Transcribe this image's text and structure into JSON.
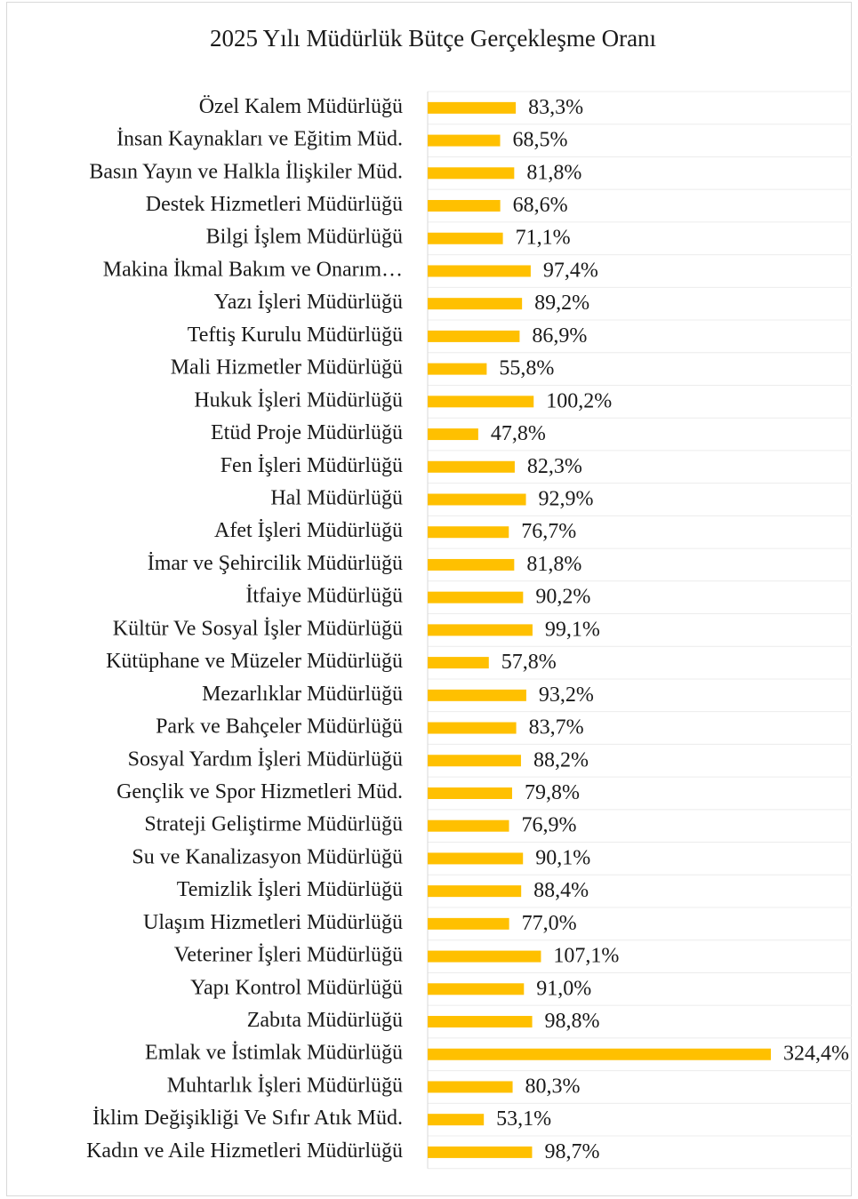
{
  "chart_data": {
    "type": "barh",
    "title": "2025 Yılı Müdürlük  Bütçe Gerçekleşme Oranı",
    "categories": [
      "Özel Kalem Müdürlüğü",
      "İnsan Kaynakları ve Eğitim Müd.",
      "Basın Yayın ve Halkla İlişkiler Müd.",
      "Destek Hizmetleri Müdürlüğü",
      "Bilgi İşlem Müdürlüğü",
      "Makina İkmal Bakım ve Onarım…",
      "Yazı İşleri Müdürlüğü",
      "Teftiş Kurulu Müdürlüğü",
      "Mali Hizmetler Müdürlüğü",
      "Hukuk İşleri Müdürlüğü",
      "Etüd Proje Müdürlüğü",
      "Fen İşleri Müdürlüğü",
      "Hal Müdürlüğü",
      "Afet İşleri Müdürlüğü",
      "İmar ve Şehircilik Müdürlüğü",
      "İtfaiye Müdürlüğü",
      "Kültür Ve Sosyal İşler Müdürlüğü",
      "Kütüphane ve Müzeler Müdürlüğü",
      "Mezarlıklar Müdürlüğü",
      "Park ve Bahçeler Müdürlüğü",
      "Sosyal Yardım İşleri Müdürlüğü",
      "Gençlik ve Spor Hizmetleri Müd.",
      "Strateji Geliştirme Müdürlüğü",
      "Su ve Kanalizasyon Müdürlüğü",
      "Temizlik İşleri Müdürlüğü",
      "Ulaşım Hizmetleri Müdürlüğü",
      "Veteriner İşleri Müdürlüğü",
      "Yapı Kontrol Müdürlüğü",
      "Zabıta Müdürlüğü",
      "Emlak ve İstimlak Müdürlüğü",
      "Muhtarlık İşleri Müdürlüğü",
      "İklim Değişikliği Ve Sıfır Atık Müd.",
      "Kadın ve Aile Hizmetleri Müdürlüğü"
    ],
    "values": [
      83.3,
      68.5,
      81.8,
      68.6,
      71.1,
      97.4,
      89.2,
      86.9,
      55.8,
      100.2,
      47.8,
      82.3,
      92.9,
      76.7,
      81.8,
      90.2,
      99.1,
      57.8,
      93.2,
      83.7,
      88.2,
      79.8,
      76.9,
      90.1,
      88.4,
      77.0,
      107.1,
      91.0,
      98.8,
      324.4,
      80.3,
      53.1,
      98.7
    ],
    "value_labels": [
      "83,3%",
      "68,5%",
      "81,8%",
      "68,6%",
      "71,1%",
      "97,4%",
      "89,2%",
      "86,9%",
      "55,8%",
      "100,2%",
      "47,8%",
      "82,3%",
      "92,9%",
      "76,7%",
      "81,8%",
      "90,2%",
      "99,1%",
      "57,8%",
      "93,2%",
      "83,7%",
      "88,2%",
      "79,8%",
      "76,9%",
      "90,1%",
      "88,4%",
      "77,0%",
      "107,1%",
      "91,0%",
      "98,8%",
      "324,4%",
      "80,3%",
      "53,1%",
      "98,7%"
    ],
    "color": "#ffc000"
  }
}
